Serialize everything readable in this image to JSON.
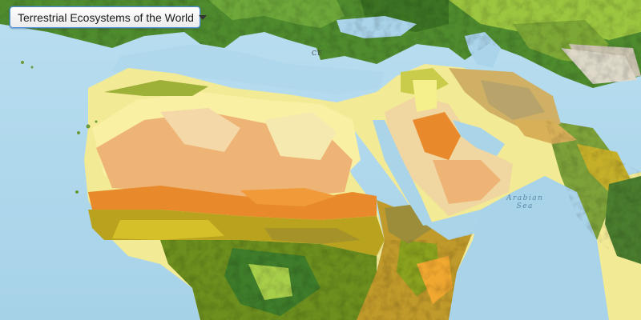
{
  "layer_selector": {
    "selected": "Terrestrial Ecosystems of the World",
    "caret_icon": "chevron-down-icon"
  },
  "map_labels": {
    "sea_line1": "Arabian",
    "sea_line2": "Sea",
    "place_partial": "CE"
  },
  "colors": {
    "water": "#aad3e6",
    "desert_light": "#f8ee9a",
    "desert_tan": "#f0b676",
    "sahel_orange": "#e88a2c",
    "savanna_olive": "#8a9a1c",
    "forest_green": "#3f7d2a",
    "grass_lime": "#a8cf4a",
    "mountain": "#b7b09a"
  }
}
